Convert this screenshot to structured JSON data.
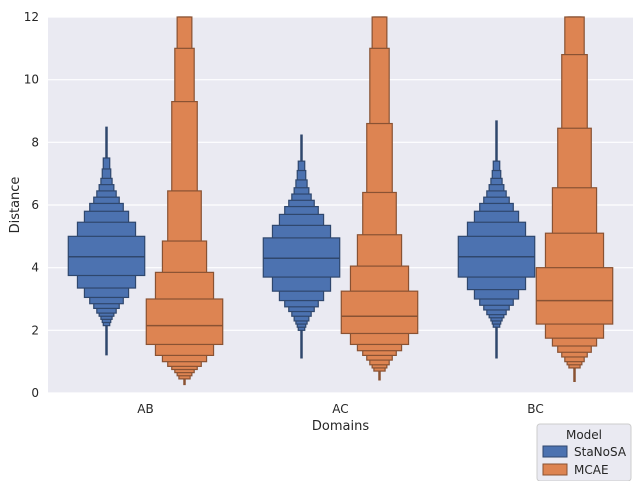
{
  "chart_data": {
    "type": "boxen",
    "xlabel": "Domains",
    "ylabel": "Distance",
    "ylim": [
      0,
      12
    ],
    "yticks": [
      0,
      2,
      4,
      6,
      8,
      10,
      12
    ],
    "categories": [
      "AB",
      "AC",
      "BC"
    ],
    "grid": true,
    "legend": {
      "title": "Model",
      "placement": "bottom-right"
    },
    "series": [
      {
        "name": "StaNoSA",
        "color": "#4c72b0",
        "groups": [
          {
            "category": "AB",
            "median": 4.35,
            "levels": [
              [
                3.75,
                5.0
              ],
              [
                3.35,
                5.45
              ],
              [
                3.05,
                5.8
              ],
              [
                2.85,
                6.05
              ],
              [
                2.7,
                6.25
              ],
              [
                2.55,
                6.45
              ],
              [
                2.45,
                6.65
              ],
              [
                2.35,
                6.85
              ],
              [
                2.25,
                7.15
              ],
              [
                2.15,
                7.5
              ]
            ],
            "whisker": [
              1.2,
              8.5
            ]
          },
          {
            "category": "AC",
            "median": 4.3,
            "levels": [
              [
                3.7,
                4.95
              ],
              [
                3.25,
                5.35
              ],
              [
                2.95,
                5.7
              ],
              [
                2.75,
                5.95
              ],
              [
                2.6,
                6.15
              ],
              [
                2.45,
                6.35
              ],
              [
                2.3,
                6.55
              ],
              [
                2.2,
                6.8
              ],
              [
                2.1,
                7.1
              ],
              [
                2.0,
                7.4
              ]
            ],
            "whisker": [
              1.1,
              8.25
            ]
          },
          {
            "category": "BC",
            "median": 4.35,
            "levels": [
              [
                3.7,
                5.0
              ],
              [
                3.3,
                5.45
              ],
              [
                3.0,
                5.8
              ],
              [
                2.8,
                6.05
              ],
              [
                2.65,
                6.25
              ],
              [
                2.5,
                6.45
              ],
              [
                2.4,
                6.65
              ],
              [
                2.3,
                6.85
              ],
              [
                2.2,
                7.1
              ],
              [
                2.1,
                7.4
              ]
            ],
            "whisker": [
              1.1,
              8.7
            ]
          }
        ]
      },
      {
        "name": "MCAE",
        "color": "#dd8452",
        "groups": [
          {
            "category": "AB",
            "median": 2.15,
            "levels": [
              [
                1.55,
                3.0
              ],
              [
                1.2,
                3.85
              ],
              [
                1.0,
                4.85
              ],
              [
                0.85,
                6.45
              ],
              [
                0.75,
                9.3
              ],
              [
                0.65,
                11.0
              ],
              [
                0.55,
                12.0
              ],
              [
                0.45,
                12.0
              ]
            ],
            "whisker": [
              0.25,
              12.0
            ]
          },
          {
            "category": "AC",
            "median": 2.45,
            "levels": [
              [
                1.9,
                3.25
              ],
              [
                1.55,
                4.05
              ],
              [
                1.35,
                5.05
              ],
              [
                1.2,
                6.4
              ],
              [
                1.05,
                8.6
              ],
              [
                0.9,
                11.0
              ],
              [
                0.8,
                12.0
              ],
              [
                0.7,
                12.0
              ]
            ],
            "whisker": [
              0.4,
              12.0
            ]
          },
          {
            "category": "BC",
            "median": 2.95,
            "levels": [
              [
                2.2,
                4.0
              ],
              [
                1.75,
                5.1
              ],
              [
                1.5,
                6.55
              ],
              [
                1.3,
                8.45
              ],
              [
                1.15,
                10.8
              ],
              [
                1.0,
                12.0
              ],
              [
                0.9,
                12.0
              ],
              [
                0.8,
                12.0
              ]
            ],
            "whisker": [
              0.35,
              12.0
            ]
          }
        ]
      }
    ]
  }
}
